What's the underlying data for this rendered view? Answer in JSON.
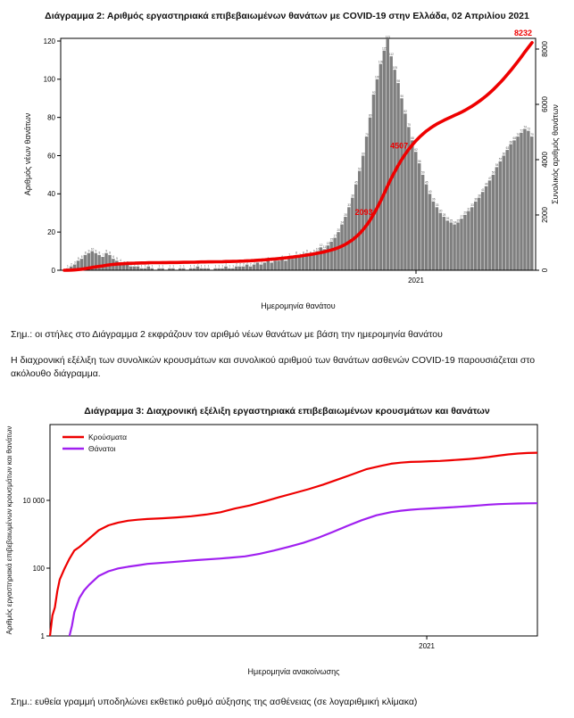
{
  "notes": {
    "note_diagram2": "Σημ.: οι στήλες στο Διάγραμμα 2 εκφράζουν τον αριθμό νέων θανάτων με βάση την ημερομηνία θανάτου",
    "paragraph": "Η διαχρονική εξέλιξη των συνολικών κρουσμάτων και συνολικού αριθμού των θανάτων ασθενών COVID-19 παρουσιάζεται στο ακόλουθο διάγραμμα.",
    "note_diagram3": "Σημ.: ευθεία γραμμή υποδηλώνει εκθετικό ρυθμό αύξησης της ασθένειας (σε λογαριθμική κλίμακα)"
  },
  "chart_data": [
    {
      "type": "bar",
      "title": "Διάγραμμα 2: Αριθμός εργαστηριακά επιβεβαιωμένων θανάτων με COVID-19 στην Ελλάδα, 02 Απριλίου 2021",
      "xlabel": "Ημερομηνία θανάτου",
      "ylabel_left": "Αριθμός νέων θανάτων",
      "ylabel_right": "Συνολικός αριθμός θανάτων",
      "bar_color": "#7f7f7f",
      "line_color": "#ee0000",
      "ylim_left": [
        0,
        120
      ],
      "ylim_right": [
        0,
        8000
      ],
      "yticks_left": [
        {
          "label": "0",
          "value": 0
        },
        {
          "label": "20",
          "value": 20
        },
        {
          "label": "40",
          "value": 40
        },
        {
          "label": "60",
          "value": 60
        },
        {
          "label": "80",
          "value": 80
        },
        {
          "label": "100",
          "value": 100
        },
        {
          "label": "120",
          "value": 120
        }
      ],
      "yticks_right": [
        {
          "label": "0",
          "value": 0
        },
        {
          "label": "2000",
          "value": 2000
        },
        {
          "label": "4000",
          "value": 4000
        },
        {
          "label": "6000",
          "value": 6000
        },
        {
          "label": "8000",
          "value": 8000
        }
      ],
      "x_tick": {
        "label": "2021",
        "index": 100
      },
      "values": [
        0,
        1,
        2,
        3,
        5,
        6,
        8,
        9,
        10,
        9,
        8,
        7,
        9,
        8,
        6,
        5,
        4,
        3,
        3,
        2,
        2,
        2,
        1,
        1,
        2,
        1,
        0,
        1,
        1,
        0,
        1,
        1,
        0,
        1,
        1,
        0,
        1,
        1,
        2,
        1,
        1,
        1,
        0,
        1,
        1,
        1,
        2,
        1,
        1,
        2,
        2,
        2,
        3,
        2,
        3,
        4,
        3,
        4,
        5,
        4,
        5,
        5,
        6,
        5,
        7,
        6,
        8,
        7,
        8,
        9,
        8,
        9,
        10,
        12,
        11,
        13,
        15,
        17,
        20,
        24,
        28,
        33,
        38,
        45,
        52,
        60,
        70,
        80,
        92,
        100,
        108,
        115,
        121,
        112,
        105,
        98,
        90,
        82,
        75,
        68,
        62,
        56,
        50,
        45,
        40,
        36,
        33,
        30,
        28,
        26,
        25,
        24,
        25,
        27,
        29,
        31,
        33,
        36,
        38,
        41,
        44,
        47,
        50,
        54,
        57,
        60,
        63,
        66,
        68,
        70,
        72,
        74,
        73,
        70
      ],
      "cumulative_total": 8232,
      "cumulative_total_label": "8232",
      "annotations": [
        {
          "label": "2093",
          "value": 2093
        },
        {
          "label": "4507",
          "value": 4507
        }
      ]
    },
    {
      "type": "line",
      "scale": "log10",
      "title": "Διάγραμμα 3: Διαχρονική εξέλιξη εργαστηριακά επιβεβαιωμένων κρουσμάτων και θανάτων",
      "xlabel": "Ημερομηνία ανακοίνωσης",
      "ylabel": "Αριθμός εργαστηριακά επιβεβαιωμένων κρουσμάτων και θανάτων",
      "ylim": [
        1,
        300000
      ],
      "legend_position": "top-left",
      "yticks": [
        {
          "label": "1",
          "value": 1
        },
        {
          "label": "100",
          "value": 100
        },
        {
          "label": "10 000",
          "value": 10000
        }
      ],
      "x_tick": {
        "label": "2021",
        "frac": 0.773
      },
      "series": [
        {
          "name": "Κρούσματα",
          "color": "#ee0000",
          "points": [
            [
              0.0,
              1
            ],
            [
              0.005,
              4
            ],
            [
              0.01,
              7
            ],
            [
              0.015,
              21
            ],
            [
              0.02,
              46
            ],
            [
              0.03,
              99
            ],
            [
              0.04,
              190
            ],
            [
              0.05,
              331
            ],
            [
              0.06,
              418
            ],
            [
              0.08,
              740
            ],
            [
              0.1,
              1314
            ],
            [
              0.12,
              1832
            ],
            [
              0.14,
              2207
            ],
            [
              0.16,
              2506
            ],
            [
              0.18,
              2678
            ],
            [
              0.2,
              2810
            ],
            [
              0.23,
              2952
            ],
            [
              0.26,
              3134
            ],
            [
              0.29,
              3409
            ],
            [
              0.32,
              3826
            ],
            [
              0.35,
              4477
            ],
            [
              0.38,
              5749
            ],
            [
              0.41,
              7075
            ],
            [
              0.44,
              9280
            ],
            [
              0.47,
              12452
            ],
            [
              0.5,
              16286
            ],
            [
              0.53,
              21381
            ],
            [
              0.56,
              29057
            ],
            [
              0.59,
              41000
            ],
            [
              0.62,
              58187
            ],
            [
              0.65,
              84000
            ],
            [
              0.68,
              105271
            ],
            [
              0.7,
              120926
            ],
            [
              0.72,
              129655
            ],
            [
              0.74,
              135931
            ],
            [
              0.76,
              138850
            ],
            [
              0.78,
              142777
            ],
            [
              0.8,
              146020
            ],
            [
              0.82,
              151980
            ],
            [
              0.84,
              158716
            ],
            [
              0.86,
              166196
            ],
            [
              0.88,
              176352
            ],
            [
              0.9,
              190235
            ],
            [
              0.92,
              208073
            ],
            [
              0.94,
              226598
            ],
            [
              0.96,
              241231
            ],
            [
              0.98,
              249458
            ],
            [
              1.0,
              254031
            ]
          ]
        },
        {
          "name": "Θάνατοι",
          "color": "#a020f0",
          "points": [
            [
              0.04,
              1
            ],
            [
              0.045,
              2
            ],
            [
              0.05,
              5
            ],
            [
              0.06,
              13
            ],
            [
              0.07,
              22
            ],
            [
              0.08,
              32
            ],
            [
              0.1,
              59
            ],
            [
              0.12,
              81
            ],
            [
              0.14,
              98
            ],
            [
              0.16,
              110
            ],
            [
              0.18,
              121
            ],
            [
              0.2,
              134
            ],
            [
              0.25,
              151
            ],
            [
              0.3,
              172
            ],
            [
              0.35,
              192
            ],
            [
              0.4,
              223
            ],
            [
              0.43,
              266
            ],
            [
              0.46,
              331
            ],
            [
              0.49,
              425
            ],
            [
              0.52,
              559
            ],
            [
              0.55,
              786
            ],
            [
              0.58,
              1165
            ],
            [
              0.61,
              1765
            ],
            [
              0.64,
              2606
            ],
            [
              0.67,
              3625
            ],
            [
              0.7,
              4507
            ],
            [
              0.72,
              4957
            ],
            [
              0.74,
              5302
            ],
            [
              0.76,
              5570
            ],
            [
              0.78,
              5764
            ],
            [
              0.8,
              5972
            ],
            [
              0.82,
              6194
            ],
            [
              0.84,
              6468
            ],
            [
              0.86,
              6758
            ],
            [
              0.88,
              7091
            ],
            [
              0.9,
              7462
            ],
            [
              0.92,
              7754
            ],
            [
              0.94,
              7945
            ],
            [
              0.96,
              8093
            ],
            [
              0.98,
              8191
            ],
            [
              1.0,
              8232
            ]
          ]
        }
      ]
    }
  ]
}
